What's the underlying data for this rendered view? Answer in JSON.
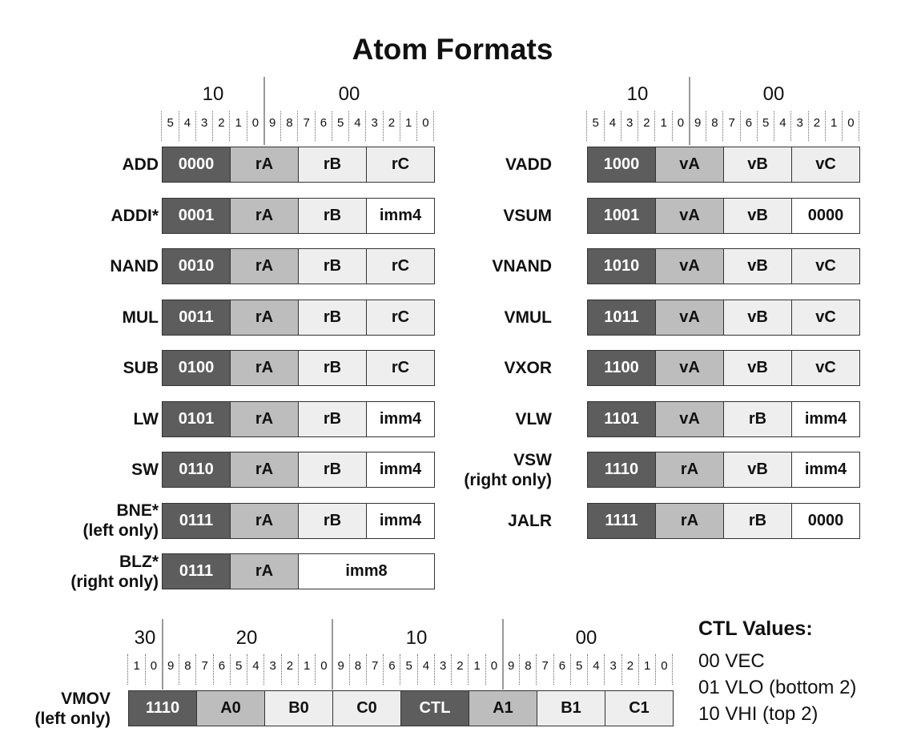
{
  "title": "Atom Formats",
  "shades": {
    "dark": "#5d5d5d",
    "mid": "#bdbdbd",
    "light": "#eeeeee",
    "white": "#ffffff"
  },
  "left_panel": {
    "group_labels": [
      "10",
      "00"
    ],
    "bit_labels": [
      "5",
      "4",
      "3",
      "2",
      "1",
      "0",
      "9",
      "8",
      "7",
      "6",
      "5",
      "4",
      "3",
      "2",
      "1",
      "0"
    ],
    "rows": [
      {
        "label": [
          "ADD"
        ],
        "fields": [
          {
            "text": "0000",
            "shade": "dark",
            "bits": 4
          },
          {
            "text": "rA",
            "shade": "mid",
            "bits": 4
          },
          {
            "text": "rB",
            "shade": "light",
            "bits": 4
          },
          {
            "text": "rC",
            "shade": "light",
            "bits": 4
          }
        ]
      },
      {
        "label": [
          "ADDI*"
        ],
        "fields": [
          {
            "text": "0001",
            "shade": "dark",
            "bits": 4
          },
          {
            "text": "rA",
            "shade": "mid",
            "bits": 4
          },
          {
            "text": "rB",
            "shade": "light",
            "bits": 4
          },
          {
            "text": "imm4",
            "shade": "white",
            "bits": 4
          }
        ]
      },
      {
        "label": [
          "NAND"
        ],
        "fields": [
          {
            "text": "0010",
            "shade": "dark",
            "bits": 4
          },
          {
            "text": "rA",
            "shade": "mid",
            "bits": 4
          },
          {
            "text": "rB",
            "shade": "light",
            "bits": 4
          },
          {
            "text": "rC",
            "shade": "light",
            "bits": 4
          }
        ]
      },
      {
        "label": [
          "MUL"
        ],
        "fields": [
          {
            "text": "0011",
            "shade": "dark",
            "bits": 4
          },
          {
            "text": "rA",
            "shade": "mid",
            "bits": 4
          },
          {
            "text": "rB",
            "shade": "light",
            "bits": 4
          },
          {
            "text": "rC",
            "shade": "light",
            "bits": 4
          }
        ]
      },
      {
        "label": [
          "SUB"
        ],
        "fields": [
          {
            "text": "0100",
            "shade": "dark",
            "bits": 4
          },
          {
            "text": "rA",
            "shade": "mid",
            "bits": 4
          },
          {
            "text": "rB",
            "shade": "light",
            "bits": 4
          },
          {
            "text": "rC",
            "shade": "light",
            "bits": 4
          }
        ]
      },
      {
        "label": [
          "LW"
        ],
        "fields": [
          {
            "text": "0101",
            "shade": "dark",
            "bits": 4
          },
          {
            "text": "rA",
            "shade": "mid",
            "bits": 4
          },
          {
            "text": "rB",
            "shade": "light",
            "bits": 4
          },
          {
            "text": "imm4",
            "shade": "white",
            "bits": 4
          }
        ]
      },
      {
        "label": [
          "SW"
        ],
        "fields": [
          {
            "text": "0110",
            "shade": "dark",
            "bits": 4
          },
          {
            "text": "rA",
            "shade": "mid",
            "bits": 4
          },
          {
            "text": "rB",
            "shade": "light",
            "bits": 4
          },
          {
            "text": "imm4",
            "shade": "white",
            "bits": 4
          }
        ]
      },
      {
        "label": [
          "BNE*",
          "(left only)"
        ],
        "fields": [
          {
            "text": "0111",
            "shade": "dark",
            "bits": 4
          },
          {
            "text": "rA",
            "shade": "mid",
            "bits": 4
          },
          {
            "text": "rB",
            "shade": "light",
            "bits": 4
          },
          {
            "text": "imm4",
            "shade": "white",
            "bits": 4
          }
        ]
      },
      {
        "label": [
          "BLZ*",
          "(right only)"
        ],
        "fields": [
          {
            "text": "0111",
            "shade": "dark",
            "bits": 4
          },
          {
            "text": "rA",
            "shade": "mid",
            "bits": 4
          },
          {
            "text": "imm8",
            "shade": "white",
            "bits": 8
          }
        ]
      }
    ]
  },
  "right_panel": {
    "group_labels": [
      "10",
      "00"
    ],
    "bit_labels": [
      "5",
      "4",
      "3",
      "2",
      "1",
      "0",
      "9",
      "8",
      "7",
      "6",
      "5",
      "4",
      "3",
      "2",
      "1",
      "0"
    ],
    "rows": [
      {
        "label": [
          "VADD"
        ],
        "fields": [
          {
            "text": "1000",
            "shade": "dark",
            "bits": 4
          },
          {
            "text": "vA",
            "shade": "mid",
            "bits": 4
          },
          {
            "text": "vB",
            "shade": "light",
            "bits": 4
          },
          {
            "text": "vC",
            "shade": "light",
            "bits": 4
          }
        ]
      },
      {
        "label": [
          "VSUM"
        ],
        "fields": [
          {
            "text": "1001",
            "shade": "dark",
            "bits": 4
          },
          {
            "text": "vA",
            "shade": "mid",
            "bits": 4
          },
          {
            "text": "vB",
            "shade": "light",
            "bits": 4
          },
          {
            "text": "0000",
            "shade": "white",
            "bits": 4
          }
        ]
      },
      {
        "label": [
          "VNAND"
        ],
        "fields": [
          {
            "text": "1010",
            "shade": "dark",
            "bits": 4
          },
          {
            "text": "vA",
            "shade": "mid",
            "bits": 4
          },
          {
            "text": "vB",
            "shade": "light",
            "bits": 4
          },
          {
            "text": "vC",
            "shade": "light",
            "bits": 4
          }
        ]
      },
      {
        "label": [
          "VMUL"
        ],
        "fields": [
          {
            "text": "1011",
            "shade": "dark",
            "bits": 4
          },
          {
            "text": "vA",
            "shade": "mid",
            "bits": 4
          },
          {
            "text": "vB",
            "shade": "light",
            "bits": 4
          },
          {
            "text": "vC",
            "shade": "light",
            "bits": 4
          }
        ]
      },
      {
        "label": [
          "VXOR"
        ],
        "fields": [
          {
            "text": "1100",
            "shade": "dark",
            "bits": 4
          },
          {
            "text": "vA",
            "shade": "mid",
            "bits": 4
          },
          {
            "text": "vB",
            "shade": "light",
            "bits": 4
          },
          {
            "text": "vC",
            "shade": "light",
            "bits": 4
          }
        ]
      },
      {
        "label": [
          "VLW"
        ],
        "fields": [
          {
            "text": "1101",
            "shade": "dark",
            "bits": 4
          },
          {
            "text": "vA",
            "shade": "mid",
            "bits": 4
          },
          {
            "text": "rB",
            "shade": "light",
            "bits": 4
          },
          {
            "text": "imm4",
            "shade": "white",
            "bits": 4
          }
        ]
      },
      {
        "label": [
          "VSW",
          "(right only)"
        ],
        "fields": [
          {
            "text": "1110",
            "shade": "dark",
            "bits": 4
          },
          {
            "text": "rA",
            "shade": "mid",
            "bits": 4
          },
          {
            "text": "vB",
            "shade": "light",
            "bits": 4
          },
          {
            "text": "imm4",
            "shade": "white",
            "bits": 4
          }
        ]
      },
      {
        "label": [
          "JALR"
        ],
        "fields": [
          {
            "text": "1111",
            "shade": "dark",
            "bits": 4
          },
          {
            "text": "rA",
            "shade": "mid",
            "bits": 4
          },
          {
            "text": "rB",
            "shade": "light",
            "bits": 4
          },
          {
            "text": "0000",
            "shade": "white",
            "bits": 4
          }
        ]
      }
    ]
  },
  "bottom_panel": {
    "group_labels": [
      "30",
      "20",
      "10",
      "00"
    ],
    "bit_labels": [
      "1",
      "0",
      "9",
      "8",
      "7",
      "6",
      "5",
      "4",
      "3",
      "2",
      "1",
      "0",
      "9",
      "8",
      "7",
      "6",
      "5",
      "4",
      "3",
      "2",
      "1",
      "0",
      "9",
      "8",
      "7",
      "6",
      "5",
      "4",
      "3",
      "2",
      "1",
      "0"
    ],
    "rows": [
      {
        "label": [
          "VMOV",
          "(left only)"
        ],
        "fields": [
          {
            "text": "1110",
            "shade": "dark",
            "bits": 4
          },
          {
            "text": "A0",
            "shade": "mid",
            "bits": 4
          },
          {
            "text": "B0",
            "shade": "light",
            "bits": 4
          },
          {
            "text": "C0",
            "shade": "light",
            "bits": 4
          },
          {
            "text": "CTL",
            "shade": "dark",
            "bits": 4
          },
          {
            "text": "A1",
            "shade": "mid",
            "bits": 4
          },
          {
            "text": "B1",
            "shade": "light",
            "bits": 4
          },
          {
            "text": "C1",
            "shade": "light",
            "bits": 4
          }
        ]
      }
    ]
  },
  "ctl_values": {
    "heading": "CTL Values:",
    "items": [
      "00 VEC",
      "01 VLO (bottom 2)",
      "10 VHI (top 2)"
    ]
  }
}
